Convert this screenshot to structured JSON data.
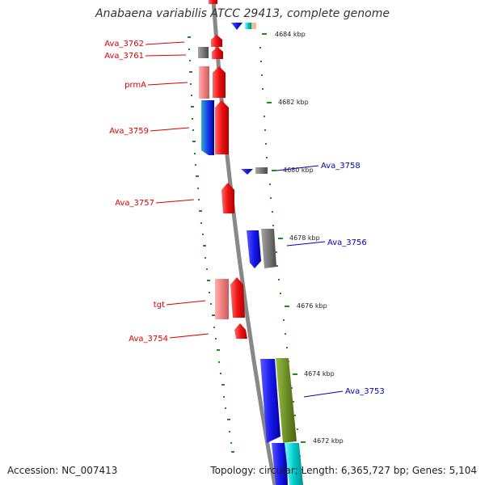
{
  "title": "Anabaena variabilis ATCC 29413, complete genome",
  "footer": {
    "accession": "Accession: NC_007413",
    "summary": "Topology: circular; Length: 6,365,727 bp; Genes: 5,104"
  },
  "colors": {
    "gene_red": "#ee1111",
    "gene_pink": "#f08080",
    "gene_blue": "#1a1aee",
    "gene_gray": "#777777",
    "gene_olive": "#6b8e23",
    "gene_cyan": "#00cccc",
    "tick_green": "#228b22",
    "label_red": "#dd0000",
    "label_blue": "#0000bb",
    "backbone": "#888888"
  },
  "scale": {
    "unit": "kbp",
    "ticks": [
      {
        "label": "4684 kbp"
      },
      {
        "label": "4682 kbp"
      },
      {
        "label": "4680 kbp"
      },
      {
        "label": "4678 kbp"
      },
      {
        "label": "4676 kbp"
      },
      {
        "label": "4674 kbp"
      },
      {
        "label": "4672 kbp"
      }
    ]
  },
  "genes": {
    "left": [
      {
        "label": "Ava_3762"
      },
      {
        "label": "Ava_3761"
      },
      {
        "label": "prmA"
      },
      {
        "label": "Ava_3759"
      },
      {
        "label": "Ava_3757"
      },
      {
        "label": "tgt"
      },
      {
        "label": "Ava_3754"
      }
    ],
    "right": [
      {
        "label": "Ava_3758"
      },
      {
        "label": "Ava_3756"
      },
      {
        "label": "Ava_3753"
      }
    ]
  }
}
